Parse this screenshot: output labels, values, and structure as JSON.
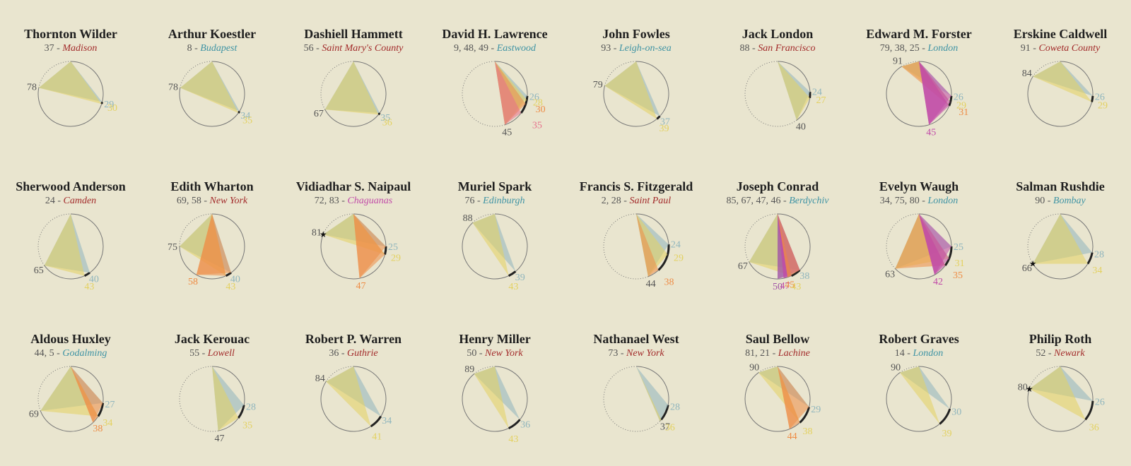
{
  "colors": {
    "background": "#e9e5cf",
    "circle": "#777777",
    "yellow": "#e3d160",
    "blue": "#8fb5bd",
    "orange": "#ee8c45",
    "pink": "#e7708b",
    "purple": "#a054a6",
    "city_blue": "#3e93a4",
    "city_red": "#a22a2a",
    "city_pink": "#c14ba8",
    "age_gray": "#555555"
  },
  "chart_data": [
    {
      "type": "radial",
      "title": "Thornton Wilder",
      "sub_numbers": "37",
      "city": "Madison",
      "city_color": "#a22a2a",
      "vertices": [
        {
          "age": 78,
          "color": "#555555"
        }
      ],
      "base": [
        {
          "age": 29,
          "color": "#8fb5bd"
        },
        {
          "age": 30,
          "color": "#e3d160"
        }
      ],
      "star": false
    },
    {
      "type": "radial",
      "title": "Arthur Koestler",
      "sub_numbers": "8",
      "city": "Budapest",
      "city_color": "#3e93a4",
      "vertices": [
        {
          "age": 78,
          "color": "#555555"
        }
      ],
      "base": [
        {
          "age": 34,
          "color": "#8fb5bd"
        },
        {
          "age": 35,
          "color": "#e3d160"
        }
      ],
      "star": false
    },
    {
      "type": "radial",
      "title": "Dashiell Hammett",
      "sub_numbers": "56",
      "city": "Saint Mary's County",
      "city_color": "#a22a2a",
      "vertices": [
        {
          "age": 67,
          "color": "#555555"
        }
      ],
      "base": [
        {
          "age": 35,
          "color": "#8fb5bd"
        },
        {
          "age": 36,
          "color": "#e3d160"
        }
      ],
      "star": false
    },
    {
      "type": "radial",
      "title": "David H. Lawrence",
      "sub_numbers": "9, 48, 49",
      "city": "Eastwood",
      "city_color": "#3e93a4",
      "vertices": [
        {
          "age": 45,
          "color": "#555555"
        }
      ],
      "base": [
        {
          "age": 26,
          "color": "#8fb5bd"
        },
        {
          "age": 28,
          "color": "#e3d160"
        },
        {
          "age": 30,
          "color": "#ee8c45"
        },
        {
          "age": 35,
          "color": "#e7708b"
        }
      ],
      "star": false
    },
    {
      "type": "radial",
      "title": "John Fowles",
      "sub_numbers": "93",
      "city": "Leigh-on-sea",
      "city_color": "#3e93a4",
      "vertices": [
        {
          "age": 79,
          "color": "#555555"
        }
      ],
      "base": [
        {
          "age": 37,
          "color": "#8fb5bd"
        },
        {
          "age": 39,
          "color": "#e3d160"
        }
      ],
      "star": false
    },
    {
      "type": "radial",
      "title": "Jack London",
      "sub_numbers": "88",
      "city": "San Francisco",
      "city_color": "#a22a2a",
      "vertices": [
        {
          "age": 40,
          "color": "#555555"
        }
      ],
      "base": [
        {
          "age": 24,
          "color": "#8fb5bd"
        },
        {
          "age": 27,
          "color": "#e3d160"
        }
      ],
      "star": false
    },
    {
      "type": "radial",
      "title": "Edward M. Forster",
      "sub_numbers": "79, 38, 25",
      "city": "London",
      "city_color": "#3e93a4",
      "vertices": [
        {
          "age": 91,
          "color": "#555555"
        },
        {
          "age": 45,
          "color": "#c14ba8"
        }
      ],
      "base": [
        {
          "age": 26,
          "color": "#8fb5bd"
        },
        {
          "age": 29,
          "color": "#e3d160"
        },
        {
          "age": 31,
          "color": "#ee8c45"
        }
      ],
      "star": false
    },
    {
      "type": "radial",
      "title": "Erskine Caldwell",
      "sub_numbers": "91",
      "city": "Coweta County",
      "city_color": "#a22a2a",
      "vertices": [
        {
          "age": 84,
          "color": "#555555"
        }
      ],
      "base": [
        {
          "age": 26,
          "color": "#8fb5bd"
        },
        {
          "age": 29,
          "color": "#e3d160"
        }
      ],
      "star": false
    },
    {
      "type": "radial",
      "title": "Sherwood Anderson",
      "sub_numbers": "24",
      "city": "Camden",
      "city_color": "#a22a2a",
      "vertices": [
        {
          "age": 65,
          "color": "#555555"
        }
      ],
      "base": [
        {
          "age": 40,
          "color": "#8fb5bd"
        },
        {
          "age": 43,
          "color": "#e3d160"
        }
      ],
      "star": false
    },
    {
      "type": "radial",
      "title": "Edith Wharton",
      "sub_numbers": "69, 58",
      "city": "New York",
      "city_color": "#a22a2a",
      "vertices": [
        {
          "age": 75,
          "color": "#555555"
        },
        {
          "age": 58,
          "color": "#ee8c45"
        }
      ],
      "base": [
        {
          "age": 40,
          "color": "#8fb5bd"
        },
        {
          "age": 43,
          "color": "#e3d160"
        }
      ],
      "star": false
    },
    {
      "type": "radial",
      "title": "Vidiadhar S. Naipaul",
      "sub_numbers": "72, 83",
      "city": "Chaguanas",
      "city_color": "#c14ba8",
      "vertices": [
        {
          "age": 81,
          "color": "#555555"
        },
        {
          "age": 47,
          "color": "#ee8c45"
        }
      ],
      "base": [
        {
          "age": 25,
          "color": "#8fb5bd"
        },
        {
          "age": 29,
          "color": "#e3d160"
        }
      ],
      "star": true
    },
    {
      "type": "radial",
      "title": "Muriel Spark",
      "sub_numbers": "76",
      "city": "Edinburgh",
      "city_color": "#3e93a4",
      "vertices": [
        {
          "age": 88,
          "color": "#555555"
        }
      ],
      "base": [
        {
          "age": 39,
          "color": "#8fb5bd"
        },
        {
          "age": 43,
          "color": "#e3d160"
        }
      ],
      "star": false
    },
    {
      "type": "radial",
      "title": "Francis S. Fitzgerald",
      "sub_numbers": "2, 28",
      "city": "Saint Paul",
      "city_color": "#a22a2a",
      "vertices": [
        {
          "age": 44,
          "color": "#555555"
        }
      ],
      "base": [
        {
          "age": 24,
          "color": "#8fb5bd"
        },
        {
          "age": 29,
          "color": "#e3d160"
        },
        {
          "age": 38,
          "color": "#ee8c45"
        }
      ],
      "star": false
    },
    {
      "type": "radial",
      "title": "Joseph Conrad",
      "sub_numbers": "85, 67, 47, 46",
      "city": "Berdychiv",
      "city_color": "#3e93a4",
      "vertices": [
        {
          "age": 67,
          "color": "#555555"
        },
        {
          "age": 50,
          "color": "#a054a6"
        },
        {
          "age": 47,
          "color": "#c14ba8"
        },
        {
          "age": 45,
          "color": "#ee8c45"
        }
      ],
      "base": [
        {
          "age": 38,
          "color": "#8fb5bd"
        },
        {
          "age": 43,
          "color": "#e3d160"
        }
      ],
      "star": false
    },
    {
      "type": "radial",
      "title": "Evelyn Waugh",
      "sub_numbers": "34, 75, 80",
      "city": "London",
      "city_color": "#3e93a4",
      "vertices": [
        {
          "age": 63,
          "color": "#555555"
        },
        {
          "age": 42,
          "color": "#c14ba8"
        }
      ],
      "base": [
        {
          "age": 25,
          "color": "#8fb5bd"
        },
        {
          "age": 31,
          "color": "#e3d160"
        },
        {
          "age": 35,
          "color": "#ee8c45"
        }
      ],
      "star": false
    },
    {
      "type": "radial",
      "title": "Salman Rushdie",
      "sub_numbers": "90",
      "city": "Bombay",
      "city_color": "#3e93a4",
      "vertices": [
        {
          "age": 66,
          "color": "#555555"
        }
      ],
      "base": [
        {
          "age": 28,
          "color": "#8fb5bd"
        },
        {
          "age": 34,
          "color": "#e3d160"
        }
      ],
      "star": true
    },
    {
      "type": "radial",
      "title": "Aldous Huxley",
      "sub_numbers": "44, 5",
      "city": "Godalming",
      "city_color": "#3e93a4",
      "vertices": [
        {
          "age": 69,
          "color": "#555555"
        },
        {
          "age": 38,
          "color": "#ee8c45"
        }
      ],
      "base": [
        {
          "age": 27,
          "color": "#8fb5bd"
        },
        {
          "age": 34,
          "color": "#e3d160"
        }
      ],
      "star": false
    },
    {
      "type": "radial",
      "title": "Jack Kerouac",
      "sub_numbers": "55",
      "city": "Lowell",
      "city_color": "#a22a2a",
      "vertices": [
        {
          "age": 47,
          "color": "#555555"
        }
      ],
      "base": [
        {
          "age": 28,
          "color": "#8fb5bd"
        },
        {
          "age": 35,
          "color": "#e3d160"
        }
      ],
      "star": false
    },
    {
      "type": "radial",
      "title": "Robert P. Warren",
      "sub_numbers": "36",
      "city": "Guthrie",
      "city_color": "#a22a2a",
      "vertices": [
        {
          "age": 84,
          "color": "#555555"
        }
      ],
      "base": [
        {
          "age": 34,
          "color": "#8fb5bd"
        },
        {
          "age": 41,
          "color": "#e3d160"
        }
      ],
      "star": false
    },
    {
      "type": "radial",
      "title": "Henry Miller",
      "sub_numbers": "50",
      "city": "New York",
      "city_color": "#a22a2a",
      "vertices": [
        {
          "age": 89,
          "color": "#555555"
        }
      ],
      "base": [
        {
          "age": 36,
          "color": "#8fb5bd"
        },
        {
          "age": 43,
          "color": "#e3d160"
        }
      ],
      "star": false
    },
    {
      "type": "radial",
      "title": "Nathanael West",
      "sub_numbers": "73",
      "city": "New York",
      "city_color": "#a22a2a",
      "vertices": [
        {
          "age": 37,
          "color": "#555555"
        }
      ],
      "base": [
        {
          "age": 28,
          "color": "#8fb5bd"
        },
        {
          "age": 36,
          "color": "#e3d160"
        }
      ],
      "star": false
    },
    {
      "type": "radial",
      "title": "Saul Bellow",
      "sub_numbers": "81, 21",
      "city": "Lachine",
      "city_color": "#a22a2a",
      "vertices": [
        {
          "age": 90,
          "color": "#555555"
        },
        {
          "age": 44,
          "color": "#ee8c45"
        }
      ],
      "base": [
        {
          "age": 29,
          "color": "#8fb5bd"
        },
        {
          "age": 38,
          "color": "#e3d160"
        }
      ],
      "star": false
    },
    {
      "type": "radial",
      "title": "Robert Graves",
      "sub_numbers": "14",
      "city": "London",
      "city_color": "#3e93a4",
      "vertices": [
        {
          "age": 90,
          "color": "#555555"
        }
      ],
      "base": [
        {
          "age": 30,
          "color": "#8fb5bd"
        },
        {
          "age": 39,
          "color": "#e3d160"
        }
      ],
      "star": false
    },
    {
      "type": "radial",
      "title": "Philip Roth",
      "sub_numbers": "52",
      "city": "Newark",
      "city_color": "#a22a2a",
      "vertices": [
        {
          "age": 80,
          "color": "#555555"
        }
      ],
      "base": [
        {
          "age": 26,
          "color": "#8fb5bd"
        },
        {
          "age": 36,
          "color": "#e3d160"
        }
      ],
      "star": true
    }
  ]
}
